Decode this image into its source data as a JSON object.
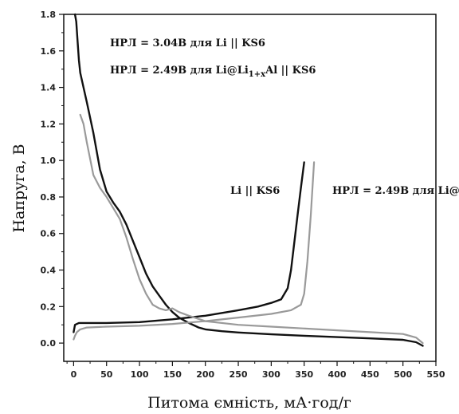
{
  "chart_data": {
    "type": "line",
    "xlabel": "Питома ємність, мА·год/г",
    "ylabel": "Напруга, В",
    "xlim": [
      -15,
      550
    ],
    "ylim": [
      -0.1,
      1.8
    ],
    "x_ticks": [
      "0",
      "50",
      "100",
      "150",
      "200",
      "250",
      "300",
      "350",
      "400",
      "450",
      "500",
      "550"
    ],
    "y_ticks": [
      "0.0",
      "0.2",
      "0.4",
      "0.6",
      "0.8",
      "1.0",
      "1.2",
      "1.4",
      "1.6",
      "1.8"
    ],
    "annotations": [
      {
        "id": "ocv-li",
        "text": "НРЛ = 3.04В  для Li || KS6"
      },
      {
        "id": "ocv-lial",
        "parts": [
          "НРЛ = 2.49В  для Li@Li",
          "1+x",
          "Al || KS6"
        ]
      }
    ],
    "series": [
      {
        "name": "Li || KS6",
        "color": "#111111",
        "segments": [
          {
            "x": [
              2,
              4,
              6,
              8,
              10,
              15,
              20,
              30,
              40,
              50,
              60,
              70,
              80,
              90,
              100,
              110,
              120,
              130,
              140,
              150,
              160,
              175,
              190,
              200,
              225,
              250,
              300,
              350,
              400,
              450,
              500,
              520,
              530
            ],
            "y": [
              1.8,
              1.76,
              1.65,
              1.55,
              1.48,
              1.4,
              1.32,
              1.15,
              0.95,
              0.83,
              0.77,
              0.72,
              0.65,
              0.56,
              0.47,
              0.38,
              0.31,
              0.26,
              0.21,
              0.17,
              0.14,
              0.11,
              0.085,
              0.075,
              0.065,
              0.058,
              0.048,
              0.04,
              0.033,
              0.026,
              0.018,
              0.005,
              -0.015
            ]
          },
          {
            "x": [
              0,
              2,
              8,
              20,
              50,
              100,
              150,
              200,
              250,
              280,
              300,
              315,
              325,
              330,
              335,
              340,
              345,
              350
            ],
            "y": [
              0.06,
              0.1,
              0.11,
              0.11,
              0.11,
              0.115,
              0.13,
              0.15,
              0.18,
              0.2,
              0.22,
              0.24,
              0.3,
              0.4,
              0.55,
              0.7,
              0.85,
              0.99
            ]
          }
        ]
      },
      {
        "name": "Li@Li1+xAl || KS6",
        "color": "#9a9a9a",
        "segments": [
          {
            "x": [
              10,
              15,
              20,
              30,
              40,
              50,
              60,
              70,
              80,
              90,
              100,
              110,
              120,
              130,
              140,
              150,
              160,
              175,
              200,
              250,
              300,
              400,
              450,
              500,
              520,
              530
            ],
            "y": [
              1.25,
              1.2,
              1.1,
              0.92,
              0.85,
              0.8,
              0.74,
              0.68,
              0.58,
              0.46,
              0.35,
              0.27,
              0.21,
              0.19,
              0.18,
              0.19,
              0.17,
              0.15,
              0.12,
              0.1,
              0.09,
              0.07,
              0.06,
              0.05,
              0.03,
              0.0
            ]
          },
          {
            "x": [
              0,
              2,
              5,
              10,
              20,
              50,
              100,
              150,
              200,
              250,
              300,
              330,
              345,
              350,
              355,
              360,
              365
            ],
            "y": [
              0.02,
              0.04,
              0.06,
              0.075,
              0.085,
              0.09,
              0.095,
              0.105,
              0.12,
              0.14,
              0.16,
              0.18,
              0.21,
              0.27,
              0.45,
              0.7,
              0.99
            ]
          }
        ]
      }
    ]
  }
}
